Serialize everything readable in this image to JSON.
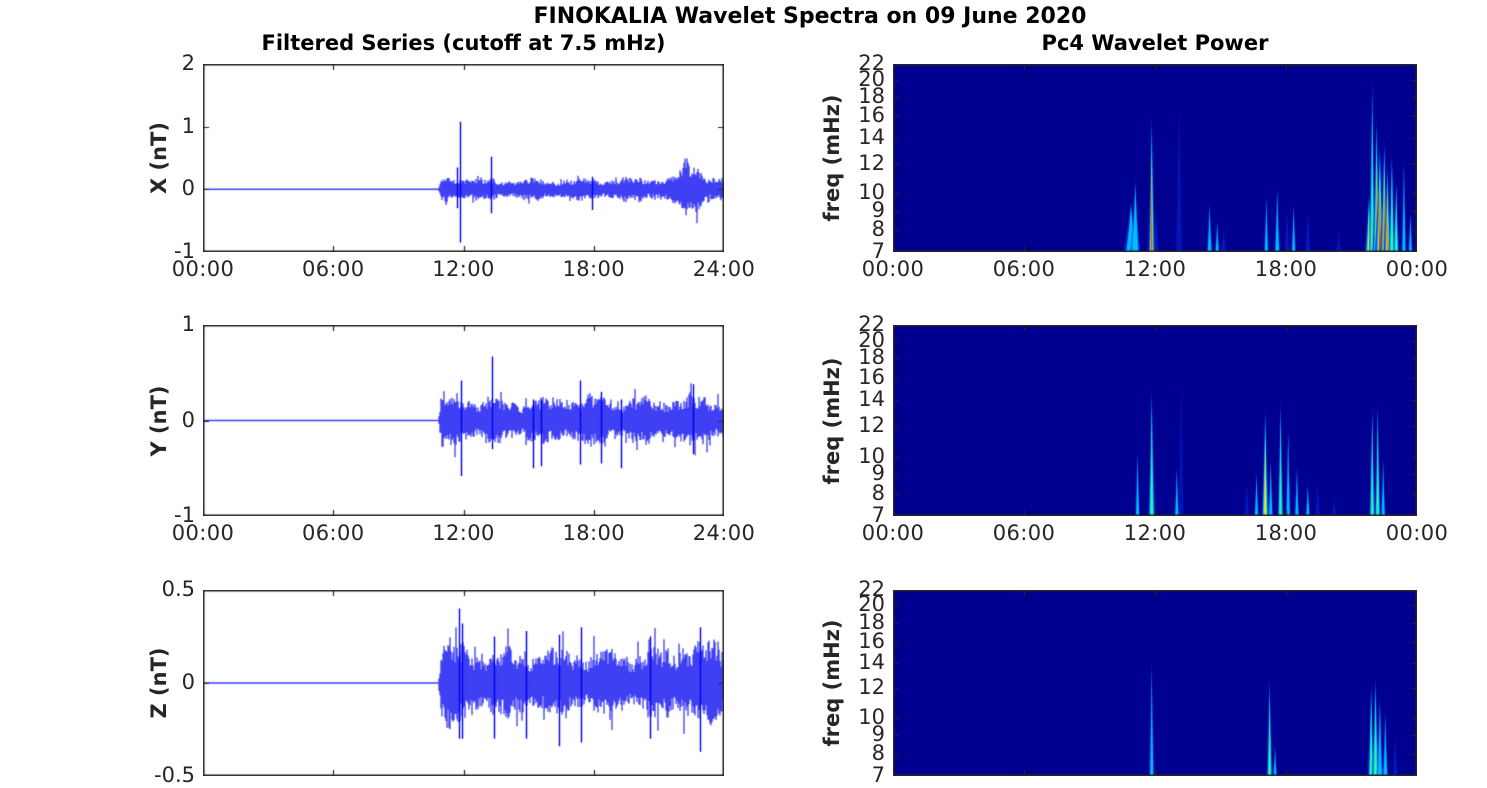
{
  "figure": {
    "title": "FINOKALIA Wavelet Spectra on 09 June 2020",
    "colors": {
      "line": "#0000f0",
      "axes": "#262626",
      "spectrogram_background": "#000090",
      "panel_background": "#ffffff"
    }
  },
  "chart_data": [
    {
      "id": "x_series",
      "type": "line",
      "position": "row1-left",
      "title": "Filtered Series (cutoff at 7.5 mHz)",
      "ylabel": "X (nT)",
      "ylim": [
        -1,
        2
      ],
      "ytick_values": [
        2,
        1,
        0,
        -1
      ],
      "ytick_labels": [
        "2",
        "1",
        "0",
        "-1"
      ],
      "xlim_hours": [
        0,
        24
      ],
      "xtick_hours": [
        0,
        6,
        12,
        18,
        24
      ],
      "xtick_labels": [
        "00:00",
        "06:00",
        "12:00",
        "18:00",
        "24:00"
      ],
      "quiet_until_hour": 10.85,
      "noise_envelope_nT": [
        [
          0,
          0.012
        ],
        [
          10.82,
          0.012
        ],
        [
          10.9,
          0.06
        ],
        [
          11.0,
          0.24
        ],
        [
          11.5,
          0.2
        ],
        [
          12.3,
          0.17
        ],
        [
          14,
          0.16
        ],
        [
          18,
          0.17
        ],
        [
          21.4,
          0.18
        ],
        [
          22.0,
          0.3
        ],
        [
          22.35,
          0.42
        ],
        [
          22.9,
          0.34
        ],
        [
          23.3,
          0.2
        ],
        [
          24,
          0.21
        ]
      ],
      "spikes_nT": [
        {
          "t": 11.82,
          "hi": 1.08,
          "lo": -0.85
        },
        {
          "t": 11.7,
          "hi": 0.35,
          "lo": -0.3
        },
        {
          "t": 13.25,
          "hi": 0.52,
          "lo": -0.38
        },
        {
          "t": 17.9,
          "hi": 0.2,
          "lo": -0.33
        }
      ]
    },
    {
      "id": "y_series",
      "type": "line",
      "position": "row2-left",
      "ylabel": "Y (nT)",
      "ylim": [
        -1,
        1
      ],
      "ytick_values": [
        1,
        0,
        -1
      ],
      "ytick_labels": [
        "1",
        "0",
        "-1"
      ],
      "xlim_hours": [
        0,
        24
      ],
      "xtick_hours": [
        0,
        6,
        12,
        18,
        24
      ],
      "xtick_labels": [
        "00:00",
        "06:00",
        "12:00",
        "18:00",
        "24:00"
      ],
      "quiet_until_hour": 10.85,
      "noise_envelope_nT": [
        [
          0,
          0.012
        ],
        [
          10.82,
          0.012
        ],
        [
          10.9,
          0.07
        ],
        [
          11.0,
          0.3
        ],
        [
          11.9,
          0.27
        ],
        [
          12.6,
          0.22
        ],
        [
          16,
          0.22
        ],
        [
          17.5,
          0.25
        ],
        [
          19,
          0.23
        ],
        [
          21,
          0.22
        ],
        [
          22,
          0.26
        ],
        [
          23,
          0.24
        ],
        [
          24,
          0.22
        ]
      ],
      "spikes_nT": [
        {
          "t": 11.88,
          "hi": 0.42,
          "lo": -0.58
        },
        {
          "t": 13.3,
          "hi": 0.67,
          "lo": -0.3
        },
        {
          "t": 15.2,
          "hi": 0.22,
          "lo": -0.5
        },
        {
          "t": 15.55,
          "hi": 0.22,
          "lo": -0.48
        },
        {
          "t": 17.35,
          "hi": 0.42,
          "lo": -0.46
        },
        {
          "t": 18.35,
          "hi": 0.3,
          "lo": -0.45
        },
        {
          "t": 19.25,
          "hi": 0.22,
          "lo": -0.5
        },
        {
          "t": 22.55,
          "hi": 0.38,
          "lo": -0.35
        }
      ]
    },
    {
      "id": "z_series",
      "type": "line",
      "position": "row3-left",
      "ylabel": "Z (nT)",
      "ylim": [
        -0.5,
        0.5
      ],
      "ytick_values": [
        0.5,
        0,
        -0.5
      ],
      "ytick_labels": [
        "0.5",
        "0",
        "-0.5"
      ],
      "xlim_hours": [
        0,
        24
      ],
      "xtick_hours": [
        0,
        6,
        12,
        18,
        24
      ],
      "xtick_labels": [],
      "quiet_until_hour": 10.85,
      "noise_envelope_nT": [
        [
          0,
          0.008
        ],
        [
          10.82,
          0.008
        ],
        [
          10.9,
          0.06
        ],
        [
          11.0,
          0.24
        ],
        [
          11.8,
          0.2
        ],
        [
          12.5,
          0.17
        ],
        [
          15,
          0.17
        ],
        [
          18,
          0.17
        ],
        [
          21.5,
          0.17
        ],
        [
          22.3,
          0.24
        ],
        [
          23.1,
          0.2
        ],
        [
          24,
          0.21
        ]
      ],
      "spikes_nT": [
        {
          "t": 11.8,
          "hi": 0.4,
          "lo": -0.3
        },
        {
          "t": 11.95,
          "hi": 0.32,
          "lo": -0.3
        },
        {
          "t": 13.4,
          "hi": 0.25,
          "lo": -0.3
        },
        {
          "t": 14.9,
          "hi": 0.28,
          "lo": -0.3
        },
        {
          "t": 16.4,
          "hi": 0.26,
          "lo": -0.34
        },
        {
          "t": 17.4,
          "hi": 0.3,
          "lo": -0.32
        },
        {
          "t": 20.6,
          "hi": 0.25,
          "lo": -0.3
        },
        {
          "t": 22.9,
          "hi": 0.3,
          "lo": -0.37
        }
      ]
    },
    {
      "id": "x_wavelet",
      "type": "heatmap",
      "position": "row1-right",
      "title": "Pc4 Wavelet Power",
      "ylabel": "freq (mHz)",
      "freq_lim_mHz": [
        7,
        22
      ],
      "log_scale": true,
      "colormap": "jet",
      "ytick_values": [
        22,
        20,
        18,
        16,
        14,
        12,
        10,
        9,
        8,
        7
      ],
      "ytick_labels": [
        "22",
        "20",
        "18",
        "16",
        "14",
        "12",
        "10",
        "9",
        "8",
        "7"
      ],
      "xtick_hours": [
        0,
        6,
        12,
        18,
        24
      ],
      "xtick_labels": [
        "00:00",
        "06:00",
        "12:00",
        "18:00",
        "00:00"
      ],
      "power_events": [
        {
          "t": 10.9,
          "fmax": 9.5,
          "intensity": 0.5,
          "w_min": 18
        },
        {
          "t": 11.1,
          "fmax": 11,
          "intensity": 0.45,
          "w_min": 12
        },
        {
          "t": 11.85,
          "fmax": 16.3,
          "intensity": 0.95,
          "w_min": 8
        },
        {
          "t": 12.05,
          "fmax": 9,
          "intensity": 0.28,
          "w_min": 6
        },
        {
          "t": 13.1,
          "fmax": 17.5,
          "intensity": 0.18,
          "w_min": 7
        },
        {
          "t": 14.5,
          "fmax": 9.5,
          "intensity": 0.4,
          "w_min": 7
        },
        {
          "t": 14.85,
          "fmax": 8.5,
          "intensity": 0.33,
          "w_min": 6
        },
        {
          "t": 15.15,
          "fmax": 8,
          "intensity": 0.25,
          "w_min": 6
        },
        {
          "t": 17.1,
          "fmax": 10,
          "intensity": 0.3,
          "w_min": 6
        },
        {
          "t": 17.6,
          "fmax": 10.5,
          "intensity": 0.45,
          "w_min": 7
        },
        {
          "t": 18.05,
          "fmax": 9,
          "intensity": 0.28,
          "w_min": 6
        },
        {
          "t": 18.35,
          "fmax": 9.5,
          "intensity": 0.3,
          "w_min": 6
        },
        {
          "t": 19.0,
          "fmax": 9,
          "intensity": 0.28,
          "w_min": 6
        },
        {
          "t": 20.4,
          "fmax": 8,
          "intensity": 0.2,
          "w_min": 6
        },
        {
          "t": 21.8,
          "fmax": 10,
          "intensity": 0.75,
          "w_min": 10
        },
        {
          "t": 21.95,
          "fmax": 20.5,
          "intensity": 0.55,
          "w_min": 8
        },
        {
          "t": 22.15,
          "fmax": 16,
          "intensity": 0.88,
          "w_min": 10
        },
        {
          "t": 22.3,
          "fmax": 13.5,
          "intensity": 0.95,
          "w_min": 12
        },
        {
          "t": 22.5,
          "fmax": 14,
          "intensity": 0.9,
          "w_min": 10
        },
        {
          "t": 22.65,
          "fmax": 12,
          "intensity": 0.85,
          "w_min": 9
        },
        {
          "t": 22.85,
          "fmax": 13,
          "intensity": 0.62,
          "w_min": 8
        },
        {
          "t": 23.05,
          "fmax": 11,
          "intensity": 0.55,
          "w_min": 7
        },
        {
          "t": 23.4,
          "fmax": 12.5,
          "intensity": 0.45,
          "w_min": 6
        },
        {
          "t": 23.7,
          "fmax": 9,
          "intensity": 0.32,
          "w_min": 5
        }
      ]
    },
    {
      "id": "y_wavelet",
      "type": "heatmap",
      "position": "row2-right",
      "ylabel": "freq (mHz)",
      "freq_lim_mHz": [
        7,
        22
      ],
      "log_scale": true,
      "colormap": "jet",
      "ytick_values": [
        22,
        20,
        18,
        16,
        14,
        12,
        10,
        9,
        8,
        7
      ],
      "ytick_labels": [
        "22",
        "20",
        "18",
        "16",
        "14",
        "12",
        "10",
        "9",
        "8",
        "7"
      ],
      "xtick_hours": [
        0,
        6,
        12,
        18,
        24
      ],
      "xtick_labels": [
        "00:00",
        "06:00",
        "12:00",
        "18:00",
        "00:00"
      ],
      "power_events": [
        {
          "t": 11.2,
          "fmax": 10.5,
          "intensity": 0.3,
          "w_min": 6
        },
        {
          "t": 11.85,
          "fmax": 15.3,
          "intensity": 0.62,
          "w_min": 8
        },
        {
          "t": 13.0,
          "fmax": 9.5,
          "intensity": 0.38,
          "w_min": 6
        },
        {
          "t": 13.2,
          "fmax": 16.5,
          "intensity": 0.15,
          "w_min": 5
        },
        {
          "t": 16.2,
          "fmax": 8.5,
          "intensity": 0.26,
          "w_min": 6
        },
        {
          "t": 16.65,
          "fmax": 9.2,
          "intensity": 0.33,
          "w_min": 6
        },
        {
          "t": 17.05,
          "fmax": 13.5,
          "intensity": 0.82,
          "w_min": 9
        },
        {
          "t": 17.3,
          "fmax": 10,
          "intensity": 0.5,
          "w_min": 6
        },
        {
          "t": 17.75,
          "fmax": 14.2,
          "intensity": 0.58,
          "w_min": 7
        },
        {
          "t": 18.1,
          "fmax": 12,
          "intensity": 0.52,
          "w_min": 6
        },
        {
          "t": 18.5,
          "fmax": 9.5,
          "intensity": 0.4,
          "w_min": 6
        },
        {
          "t": 19.0,
          "fmax": 8.5,
          "intensity": 0.32,
          "w_min": 6
        },
        {
          "t": 19.45,
          "fmax": 8.5,
          "intensity": 0.26,
          "w_min": 5
        },
        {
          "t": 20.2,
          "fmax": 7.8,
          "intensity": 0.2,
          "w_min": 5
        },
        {
          "t": 21.95,
          "fmax": 13.8,
          "intensity": 0.58,
          "w_min": 7
        },
        {
          "t": 22.2,
          "fmax": 14,
          "intensity": 0.62,
          "w_min": 7
        },
        {
          "t": 22.45,
          "fmax": 10,
          "intensity": 0.45,
          "w_min": 6
        }
      ]
    },
    {
      "id": "z_wavelet",
      "type": "heatmap",
      "position": "row3-right",
      "ylabel": "freq (mHz)",
      "freq_lim_mHz": [
        7,
        22
      ],
      "log_scale": true,
      "colormap": "jet",
      "ytick_values": [
        22,
        20,
        18,
        16,
        14,
        12,
        10,
        9,
        8,
        7
      ],
      "ytick_labels": [
        "22",
        "20",
        "18",
        "16",
        "14",
        "12",
        "10",
        "9",
        "8",
        "7"
      ],
      "xtick_hours": [
        0,
        6,
        12,
        18,
        24
      ],
      "xtick_labels": [],
      "power_events": [
        {
          "t": 11.85,
          "fmax": 14.5,
          "intensity": 0.52,
          "w_min": 6
        },
        {
          "t": 17.25,
          "fmax": 13,
          "intensity": 0.62,
          "w_min": 7
        },
        {
          "t": 17.5,
          "fmax": 8.5,
          "intensity": 0.33,
          "w_min": 5
        },
        {
          "t": 21.9,
          "fmax": 12.5,
          "intensity": 0.55,
          "w_min": 8
        },
        {
          "t": 22.1,
          "fmax": 13,
          "intensity": 0.62,
          "w_min": 9
        },
        {
          "t": 22.3,
          "fmax": 11.5,
          "intensity": 0.5,
          "w_min": 8
        },
        {
          "t": 22.55,
          "fmax": 10.5,
          "intensity": 0.42,
          "w_min": 7
        },
        {
          "t": 23.0,
          "fmax": 9,
          "intensity": 0.28,
          "w_min": 5
        }
      ]
    }
  ]
}
